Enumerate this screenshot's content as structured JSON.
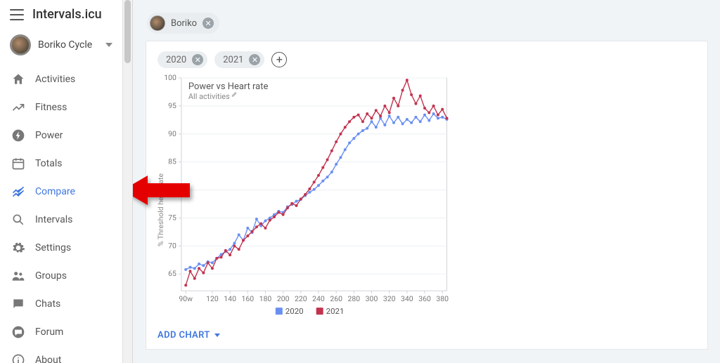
{
  "app": {
    "title": "Intervals.icu"
  },
  "profile": {
    "name": "Boriko Cycle"
  },
  "sidebar": {
    "items": [
      {
        "id": "activities",
        "label": "Activities",
        "icon": "home-icon"
      },
      {
        "id": "fitness",
        "label": "Fitness",
        "icon": "trend-icon"
      },
      {
        "id": "power",
        "label": "Power",
        "icon": "bolt-icon"
      },
      {
        "id": "totals",
        "label": "Totals",
        "icon": "calendar-icon"
      },
      {
        "id": "compare",
        "label": "Compare",
        "icon": "compare-icon",
        "active": true
      },
      {
        "id": "intervals",
        "label": "Intervals",
        "icon": "search-icon"
      },
      {
        "id": "settings",
        "label": "Settings",
        "icon": "gear-icon"
      },
      {
        "id": "groups",
        "label": "Groups",
        "icon": "people-icon"
      },
      {
        "id": "chats",
        "label": "Chats",
        "icon": "chat-icon"
      },
      {
        "id": "forum",
        "label": "Forum",
        "icon": "forum-icon"
      },
      {
        "id": "about",
        "label": "About",
        "icon": "info-icon"
      }
    ]
  },
  "athlete_chip": {
    "name": "Boriko"
  },
  "year_chips": [
    "2020",
    "2021"
  ],
  "chart": {
    "type": "line",
    "title": "Power vs Heart rate",
    "subtitle": "All activities",
    "ylabel": "% Threshold heart rate",
    "xlim": [
      85,
      385
    ],
    "ylim": [
      62,
      100
    ],
    "xticks": [
      "90w",
      120,
      140,
      160,
      180,
      200,
      220,
      240,
      260,
      280,
      300,
      320,
      340,
      360,
      380
    ],
    "yticks": [
      65,
      70,
      75,
      80,
      85,
      90,
      95,
      100
    ],
    "grid_color": "#eef1f3",
    "axis_color": "#cfd3d6",
    "background": "#ffffff",
    "marker_radius": 2,
    "line_width": 1.4,
    "legend": [
      {
        "label": "2020",
        "color": "#6a8ff2"
      },
      {
        "label": "2021",
        "color": "#c2334e"
      }
    ],
    "series": [
      {
        "name": "2020",
        "color": "#6a8ff2",
        "x_start": 90,
        "x_step": 5,
        "y": [
          65.8,
          66.2,
          66.0,
          66.8,
          66.5,
          67.2,
          67.0,
          67.8,
          68.5,
          69.0,
          69.4,
          70.5,
          72.0,
          71.0,
          73.2,
          72.4,
          74.8,
          73.6,
          74.5,
          75.0,
          75.6,
          76.2,
          76.0,
          77.0,
          77.4,
          78.0,
          78.3,
          79.0,
          79.6,
          80.1,
          80.8,
          81.6,
          82.3,
          83.2,
          84.6,
          85.8,
          87.2,
          88.4,
          89.2,
          90.0,
          90.6,
          91.0,
          92.2,
          91.2,
          92.8,
          91.6,
          93.2,
          92.0,
          93.0,
          91.8,
          92.6,
          92.0,
          93.0,
          92.2,
          93.4,
          92.4,
          93.6,
          92.8,
          93.0,
          92.6
        ]
      },
      {
        "name": "2021",
        "color": "#c2334e",
        "x_start": 90,
        "x_step": 5,
        "y": [
          63.0,
          65.5,
          64.2,
          66.0,
          65.2,
          67.0,
          66.0,
          67.8,
          68.0,
          69.2,
          68.4,
          70.0,
          69.4,
          71.0,
          71.8,
          72.6,
          73.4,
          74.0,
          73.2,
          74.6,
          75.2,
          76.0,
          75.6,
          76.8,
          77.6,
          77.2,
          78.4,
          79.2,
          80.2,
          81.4,
          82.6,
          84.0,
          85.4,
          87.0,
          88.6,
          90.0,
          91.2,
          92.2,
          93.0,
          93.4,
          92.2,
          93.6,
          92.8,
          94.2,
          93.2,
          95.0,
          93.8,
          96.4,
          95.0,
          97.8,
          99.6,
          97.0,
          95.4,
          96.8,
          94.6,
          93.8,
          95.0,
          93.4,
          94.4,
          92.8
        ]
      }
    ]
  },
  "add_chart_label": "ADD CHART"
}
